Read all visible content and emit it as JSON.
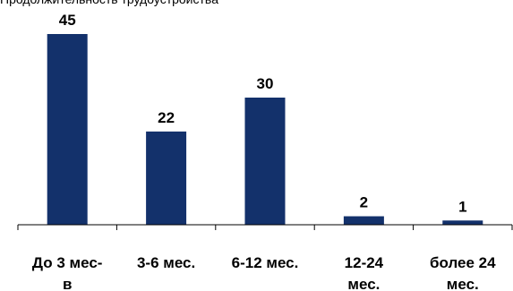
{
  "chart_data": {
    "type": "bar",
    "title": "Продолжительность трудоустройства",
    "categories": [
      [
        "До 3 мес-",
        "в"
      ],
      [
        "3-6 мес."
      ],
      [
        "6-12 мес."
      ],
      [
        "12-24",
        "мес."
      ],
      [
        "более 24",
        "мес."
      ]
    ],
    "values": [
      45,
      22,
      30,
      2,
      1
    ],
    "ylim": [
      0,
      45
    ],
    "grid": false,
    "bar_color": "#13316b",
    "axis_color": "#000000"
  }
}
